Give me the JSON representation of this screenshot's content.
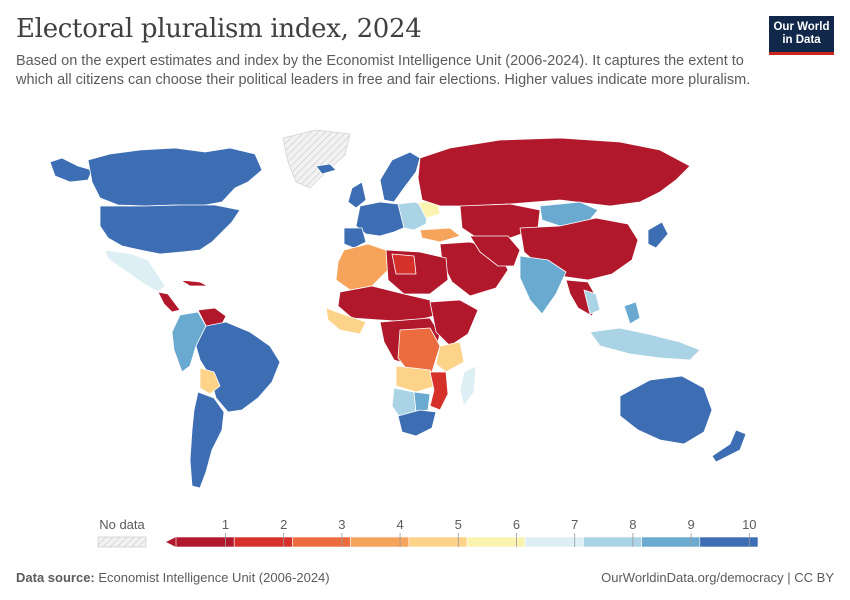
{
  "header": {
    "title": "Electoral pluralism index, 2024",
    "subtitle": "Based on the expert estimates and index by the Economist Intelligence Unit (2006-2024). It captures the extent to which all citizens can choose their political leaders in free and fair elections. Higher values indicate more pluralism.",
    "logo_line1": "Our World",
    "logo_line2": "in Data"
  },
  "legend": {
    "no_data_label": "No data",
    "ticks": [
      "1",
      "2",
      "3",
      "4",
      "5",
      "6",
      "7",
      "8",
      "9",
      "10"
    ],
    "colors": [
      "#b2182b",
      "#d6302b",
      "#ec6b3f",
      "#f6a45b",
      "#fdd38a",
      "#fbf4b1",
      "#ddeef4",
      "#aad4e5",
      "#6aaad1",
      "#3d6db3"
    ]
  },
  "footer": {
    "source_label": "Data source:",
    "source_text": "Economist Intelligence Unit (2006-2024)",
    "url": "OurWorldinData.org/democracy | CC BY"
  },
  "colors": {
    "low": "#b2182b",
    "high": "#3d6db3",
    "no_data": "#e8e8e8",
    "border": "#ffffff"
  }
}
